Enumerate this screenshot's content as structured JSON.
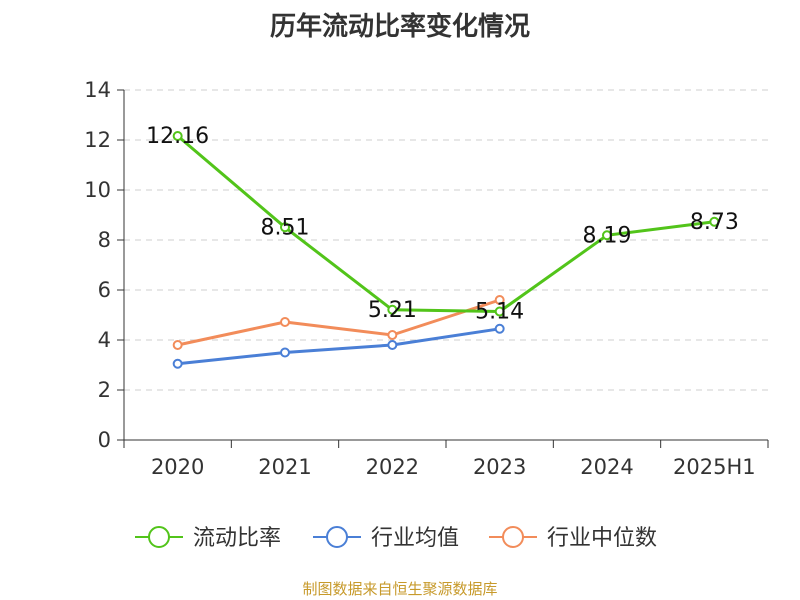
{
  "chart_data": {
    "type": "line",
    "title": "历年流动比率变化情况",
    "categories": [
      "2020",
      "2021",
      "2022",
      "2023",
      "2024",
      "2025H1"
    ],
    "ylim": [
      0,
      14
    ],
    "yticks": [
      0,
      2,
      4,
      6,
      8,
      10,
      12,
      14
    ],
    "grid": true,
    "legend_position": "bottom",
    "series": [
      {
        "name": "流动比率",
        "color": "#52c41a",
        "values": [
          12.16,
          8.51,
          5.21,
          5.14,
          8.19,
          8.73
        ],
        "labels": [
          "12.16",
          "8.51",
          "5.21",
          "5.14",
          "8.19",
          "8.73"
        ]
      },
      {
        "name": "行业均值",
        "color": "#4a7fd6",
        "values": [
          3.05,
          3.5,
          3.8,
          4.45,
          null,
          null
        ]
      },
      {
        "name": "行业中位数",
        "color": "#f28c5a",
        "values": [
          3.8,
          4.72,
          4.2,
          5.6,
          null,
          null
        ]
      }
    ]
  },
  "source_note": "制图数据来自恒生聚源数据库",
  "source_note_color": "#c79a2b"
}
